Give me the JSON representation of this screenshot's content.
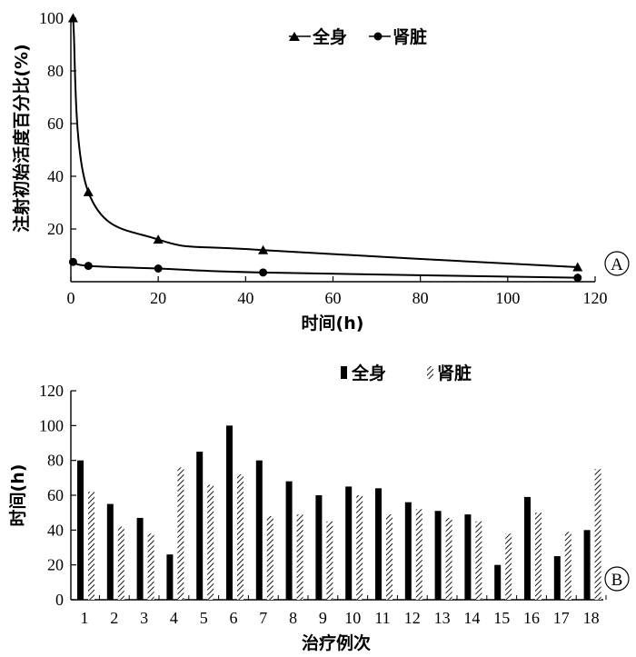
{
  "chart_data": [
    {
      "type": "line",
      "panel_label": "A",
      "xlabel": "时间(h)",
      "ylabel": "注射初始活度百分比(%)",
      "xlim": [
        0,
        120
      ],
      "ylim": [
        0,
        100
      ],
      "xticks": [
        "0",
        "20",
        "40",
        "60",
        "80",
        "100",
        "120"
      ],
      "yticks": [
        "20",
        "40",
        "60",
        "80",
        "100"
      ],
      "legend_position": "top-right",
      "series": [
        {
          "name": "全身",
          "marker": "triangle",
          "x": [
            0.5,
            4,
            20,
            44,
            116
          ],
          "y": [
            100,
            34,
            16,
            12,
            5.5
          ]
        },
        {
          "name": "肾脏",
          "marker": "circle",
          "x": [
            0.5,
            4,
            20,
            44,
            116
          ],
          "y": [
            7.5,
            6,
            5,
            3.5,
            1.5
          ]
        }
      ]
    },
    {
      "type": "bar",
      "panel_label": "B",
      "xlabel": "治疗例次",
      "ylabel": "时间(h)",
      "ylim": [
        0,
        120
      ],
      "yticks": [
        "0",
        "20",
        "40",
        "60",
        "80",
        "100",
        "120"
      ],
      "legend_position": "top-right",
      "categories": [
        "1",
        "2",
        "3",
        "4",
        "5",
        "6",
        "7",
        "8",
        "9",
        "10",
        "11",
        "12",
        "13",
        "14",
        "15",
        "16",
        "17",
        "18"
      ],
      "series": [
        {
          "name": "全身",
          "pattern": "solid",
          "values": [
            80,
            55,
            47,
            26,
            85,
            100,
            80,
            68,
            60,
            65,
            64,
            56,
            51,
            49,
            20,
            59,
            25,
            40
          ]
        },
        {
          "name": "肾脏",
          "pattern": "hatched",
          "values": [
            62,
            42,
            38,
            76,
            66,
            72,
            48,
            49,
            45,
            60,
            49,
            52,
            47,
            45,
            38,
            50,
            39,
            75
          ]
        }
      ]
    }
  ]
}
